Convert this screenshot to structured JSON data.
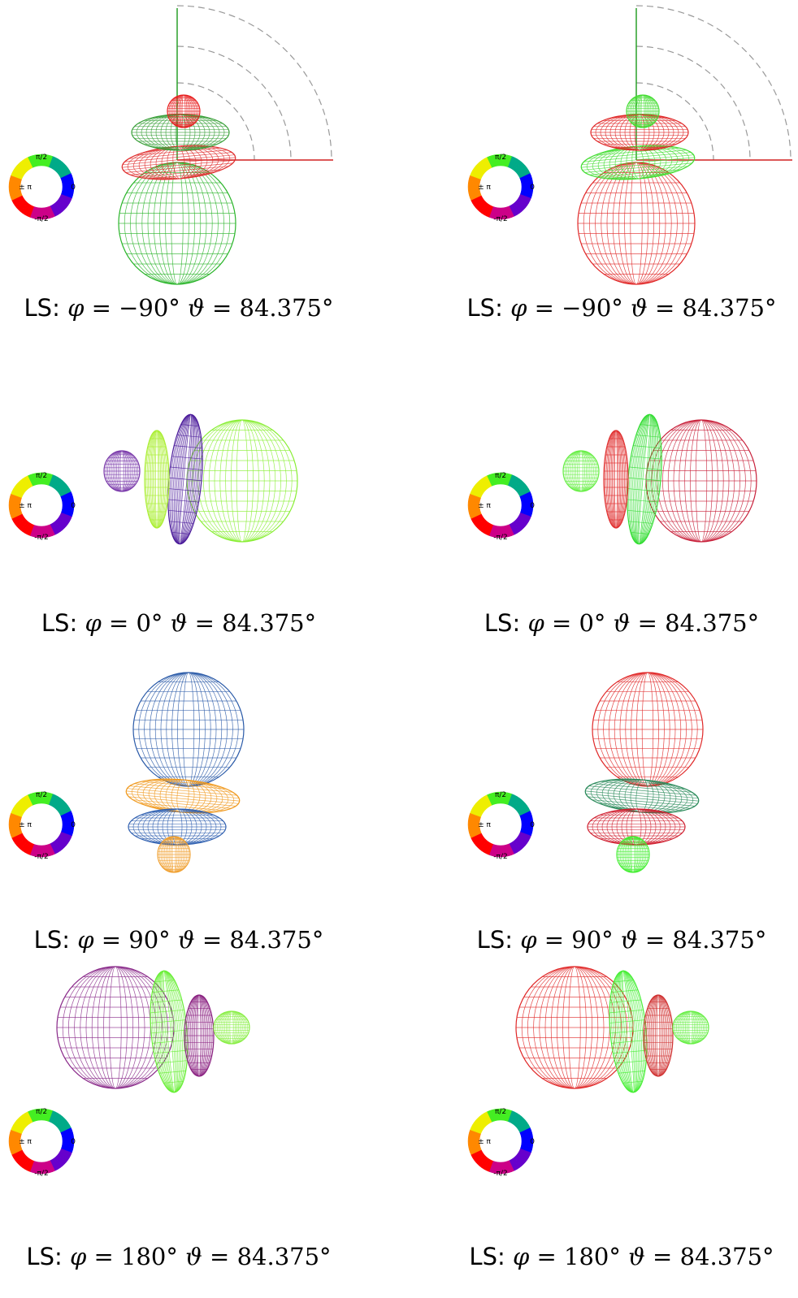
{
  "legend_labels": {
    "top": "π/2",
    "right": "0",
    "bottom": "-π/2",
    "center": "± π"
  },
  "caption_prefix": "LS:",
  "panels": [
    {
      "phi": "−90°",
      "theta": "84.375°",
      "view": "top",
      "colors": [
        "#2bb52b",
        "#e03030",
        "#3aa03a",
        "#e82020"
      ]
    },
    {
      "phi": "−90°",
      "theta": "84.375°",
      "view": "top",
      "colors": [
        "#e02828",
        "#44dd33",
        "#e02828",
        "#44dd33"
      ]
    },
    {
      "phi": "0°",
      "theta": "84.375°",
      "view": "right",
      "colors": [
        "#88ee33",
        "#4a1a9a",
        "#aaee33",
        "#7a3aaa"
      ]
    },
    {
      "phi": "0°",
      "theta": "84.375°",
      "view": "right",
      "colors": [
        "#c8203a",
        "#33dd33",
        "#e03030",
        "#66ee44"
      ]
    },
    {
      "phi": "90°",
      "theta": "84.375°",
      "view": "bottom",
      "colors": [
        "#2a5aa8",
        "#f09a20",
        "#3060b0",
        "#f0a030"
      ]
    },
    {
      "phi": "90°",
      "theta": "84.375°",
      "view": "bottom",
      "colors": [
        "#e02828",
        "#2a8a5a",
        "#d02030",
        "#44ee33"
      ]
    },
    {
      "phi": "180°",
      "theta": "84.375°",
      "view": "left",
      "colors": [
        "#8a2a8a",
        "#66ee33",
        "#8a2080",
        "#88ee44"
      ]
    },
    {
      "phi": "180°",
      "theta": "84.375°",
      "view": "left",
      "colors": [
        "#e02828",
        "#44ee33",
        "#d03030",
        "#66ee44"
      ]
    }
  ]
}
